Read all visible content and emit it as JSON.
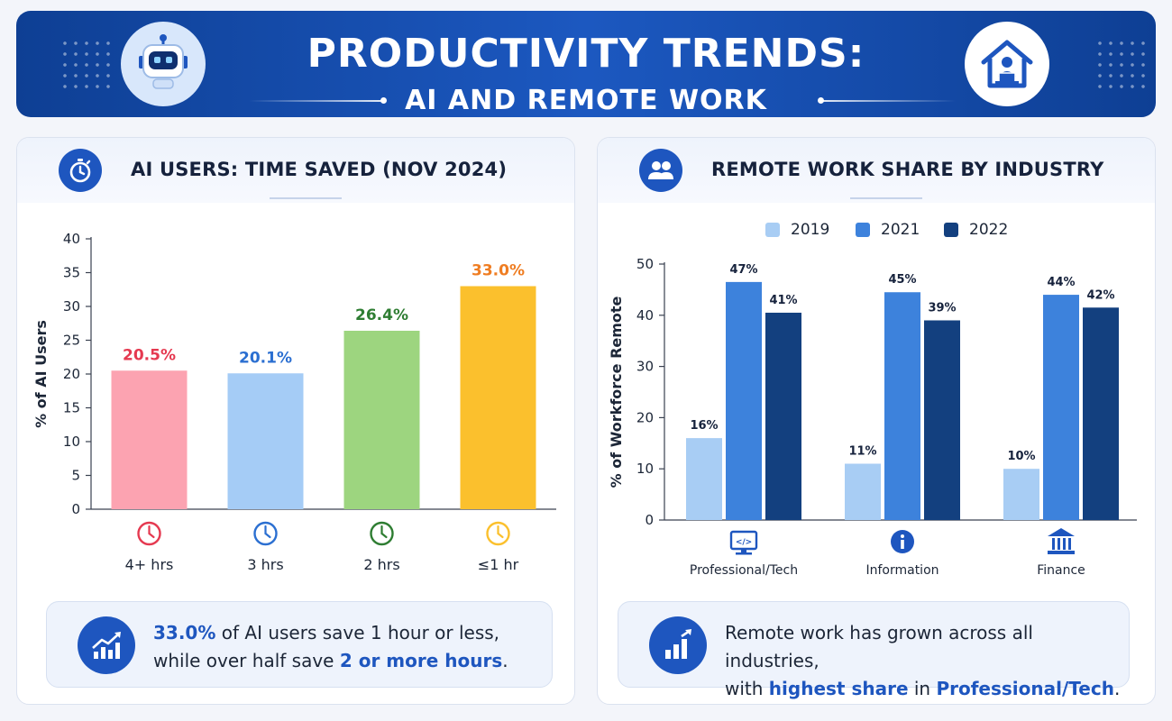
{
  "header": {
    "title_line1": "PRODUCTIVITY TRENDS:",
    "title_line2": "AI AND REMOTE WORK",
    "left_icon": "robot-icon",
    "right_icon": "house-laptop-icon"
  },
  "colors": {
    "banner": "#1c58c0",
    "accent": "#1e56bf",
    "dark_text": "#16223c"
  },
  "left_panel": {
    "icon": "stopwatch-icon",
    "title": "AI USERS: TIME SAVED (NOV 2024)",
    "note": {
      "icon": "chart-growth-icon",
      "line1_highlight": "33.0%",
      "line1_rest": " of AI users save 1 hour or less,",
      "line2_start": "while over half save ",
      "line2_highlight": "2 or more hours",
      "line2_end": "."
    }
  },
  "right_panel": {
    "icon": "people-icon",
    "title": "REMOTE WORK SHARE BY INDUSTRY",
    "note": {
      "icon": "bar-growth-icon",
      "line1": "Remote work has grown across all industries,",
      "line2_start": "with ",
      "line2_highlight1": "highest share",
      "line2_mid": " in ",
      "line2_highlight2": "Professional/Tech",
      "line2_end": "."
    }
  },
  "chart_data": [
    {
      "type": "bar",
      "title": "AI USERS: TIME SAVED (NOV 2024)",
      "xlabel": "",
      "ylabel": "% of AI Users",
      "ylim": [
        0,
        40
      ],
      "yticks": [
        0,
        5,
        10,
        15,
        20,
        25,
        30,
        35,
        40
      ],
      "grid": false,
      "categories": [
        "4+ hrs",
        "3 hrs",
        "2 hrs",
        "≤1 hr"
      ],
      "values": [
        20.5,
        20.1,
        26.4,
        33.0
      ],
      "value_labels": [
        "20.5%",
        "20.1%",
        "26.4%",
        "33.0%"
      ],
      "category_icon": "clock-icon",
      "bar_colors": [
        "#fca3b1",
        "#a5ccf6",
        "#9dd57f",
        "#fbc02d"
      ],
      "label_colors": [
        "#e53950",
        "#2b6fd1",
        "#2e7d32",
        "#ef7d22"
      ],
      "icon_colors": [
        "#e53950",
        "#2b6fd1",
        "#2e7d32",
        "#fbc02d"
      ]
    },
    {
      "type": "bar",
      "title": "REMOTE WORK SHARE BY INDUSTRY",
      "xlabel": "",
      "ylabel": "% of Workforce Remote",
      "ylim": [
        0,
        50
      ],
      "yticks": [
        0,
        10,
        20,
        30,
        40,
        50
      ],
      "grid": false,
      "legend": "top",
      "categories": [
        "Professional/Tech",
        "Information",
        "Finance"
      ],
      "category_icons": [
        "monitor-code-icon",
        "info-icon",
        "bank-icon"
      ],
      "series": [
        {
          "name": "2019",
          "values": [
            16,
            11,
            10
          ],
          "labels": [
            "16%",
            "11%",
            "10%"
          ],
          "color": "#a8cdf4"
        },
        {
          "name": "2021",
          "values": [
            46.5,
            44.5,
            44
          ],
          "labels": [
            "47%",
            "45%",
            "44%"
          ],
          "color": "#3d82dc"
        },
        {
          "name": "2022",
          "values": [
            40.5,
            39,
            41.5
          ],
          "labels": [
            "41%",
            "39%",
            "42%"
          ],
          "color": "#13407f"
        }
      ]
    }
  ]
}
